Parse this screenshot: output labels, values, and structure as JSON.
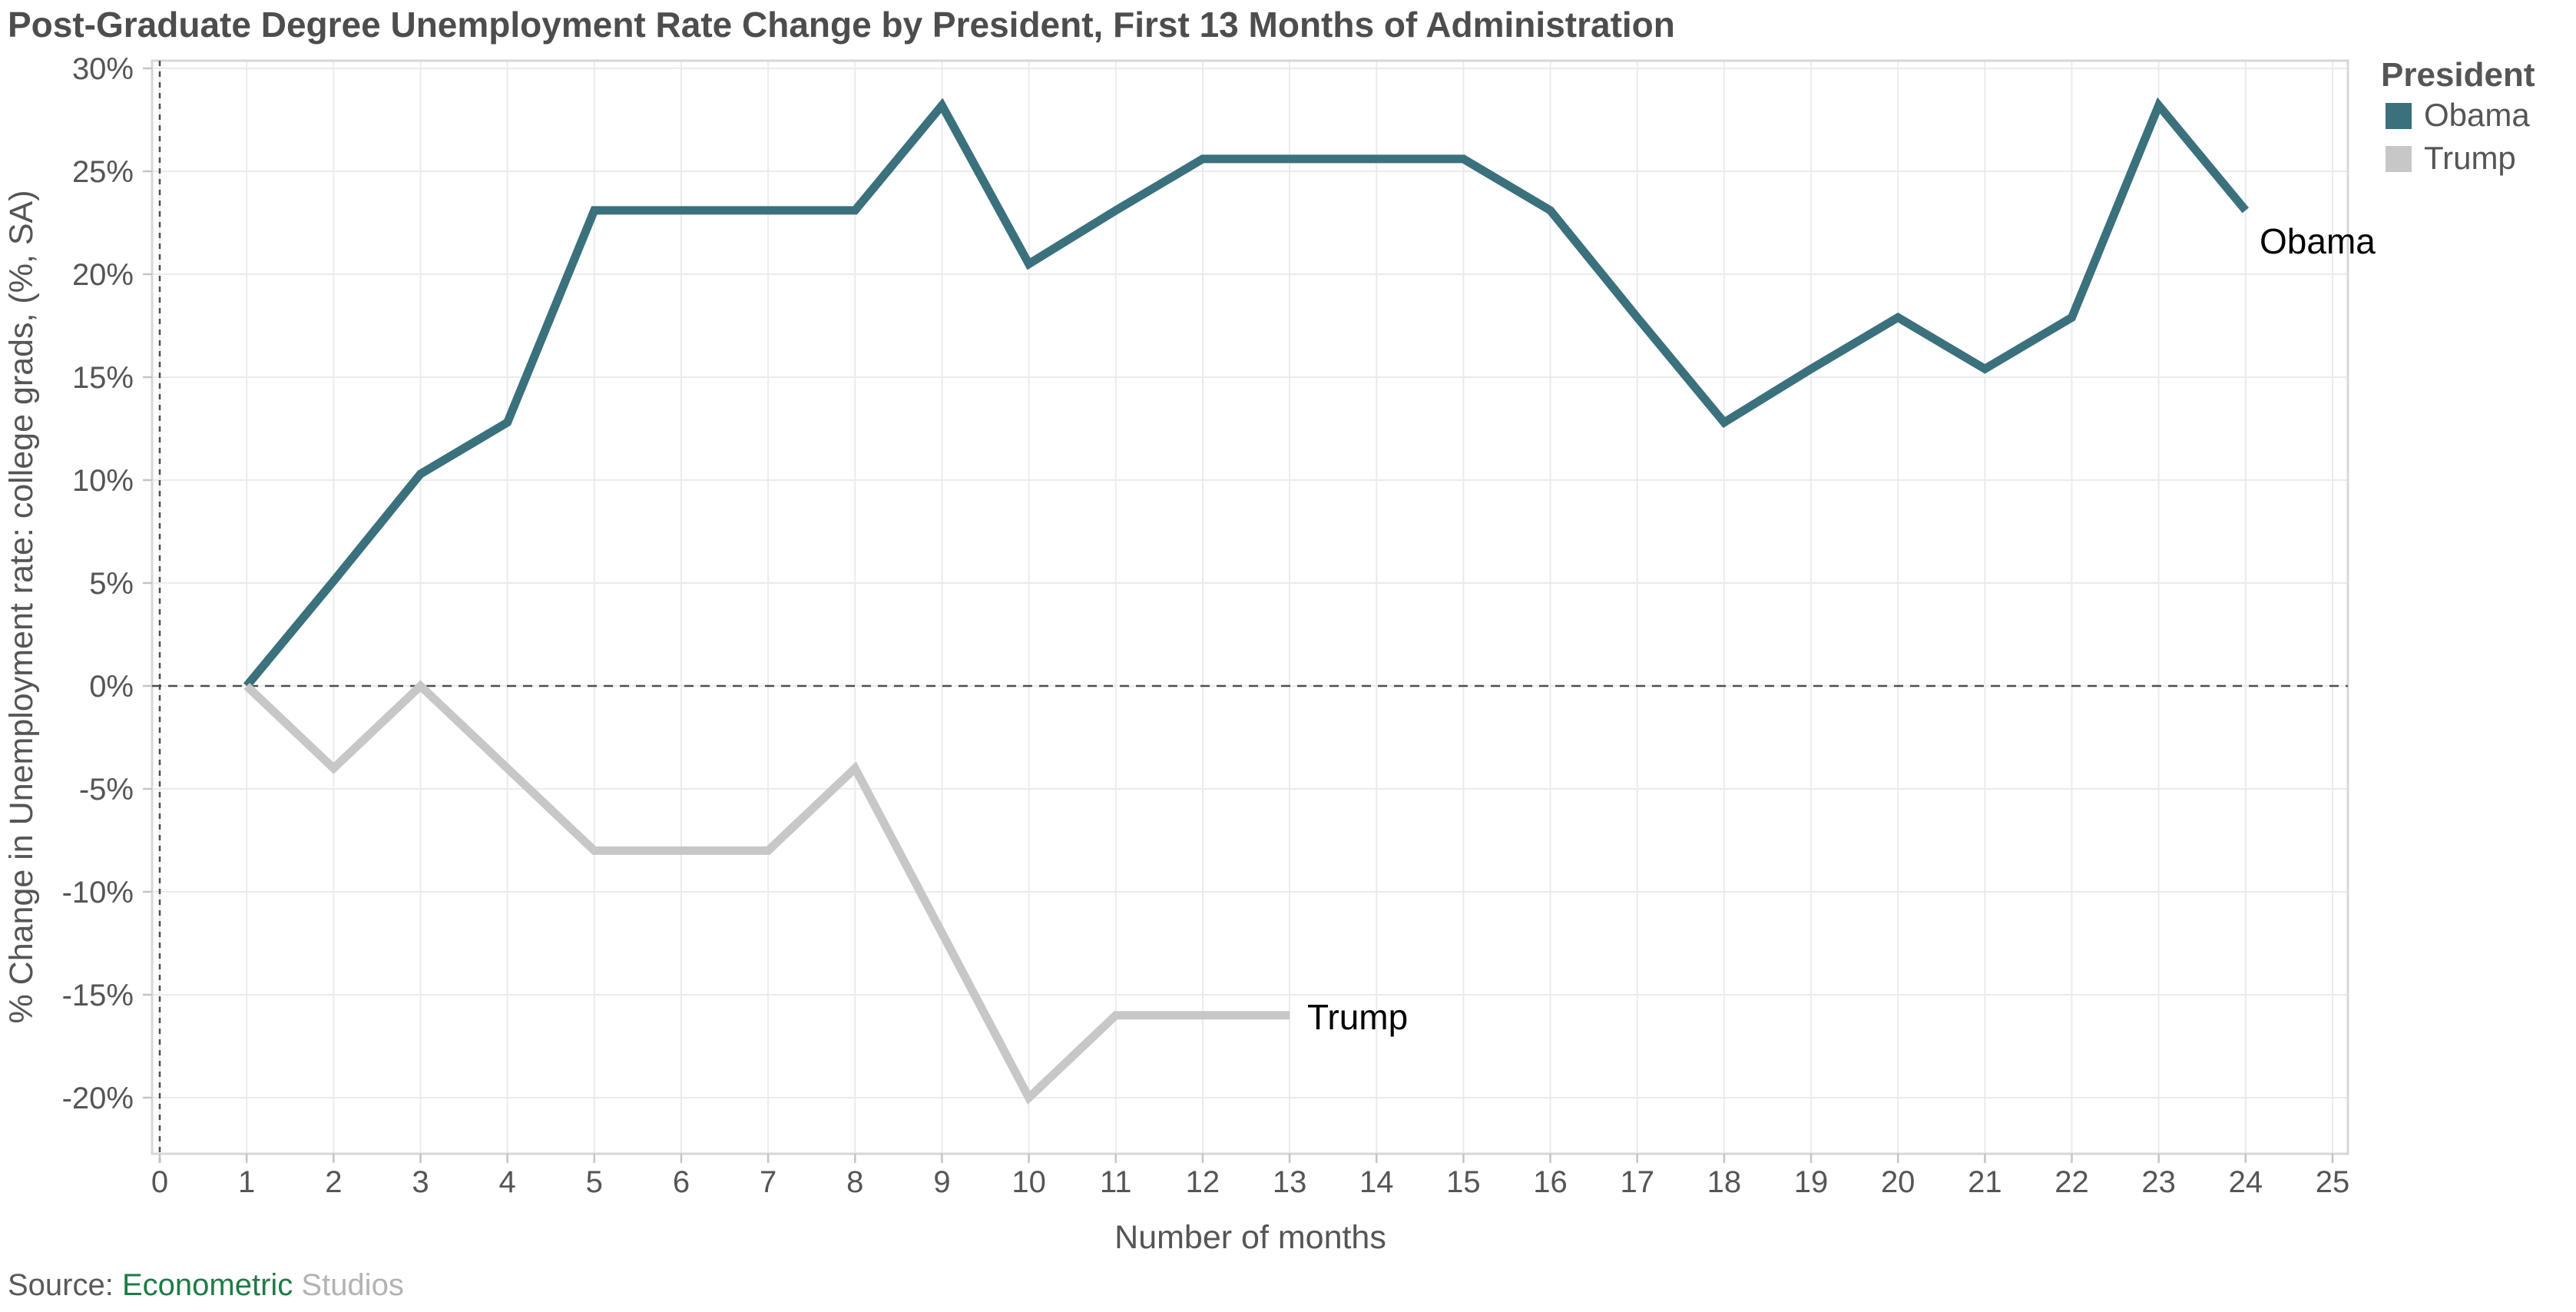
{
  "title": "Post-Graduate Degree Unemployment Rate Change by President, First 13 Months of Administration",
  "axes": {
    "x_title": "Number of months",
    "y_title": "% Change in Unemployment rate: college grads, (%, SA)",
    "x_ticks": [
      "0",
      "1",
      "2",
      "3",
      "4",
      "5",
      "6",
      "7",
      "8",
      "9",
      "10",
      "11",
      "12",
      "13",
      "14",
      "15",
      "16",
      "17",
      "18",
      "19",
      "20",
      "21",
      "22",
      "23",
      "24",
      "25"
    ],
    "y_ticks": [
      "30%",
      "25%",
      "20%",
      "15%",
      "10%",
      "5%",
      "0%",
      "-5%",
      "-10%",
      "-15%",
      "-20%"
    ]
  },
  "legend": {
    "title": "President",
    "items": [
      {
        "label": "Obama",
        "color": "#3A717C"
      },
      {
        "label": "Trump",
        "color": "#C7C7C7"
      }
    ]
  },
  "series_end_labels": {
    "obama": "Obama",
    "trump": "Trump"
  },
  "source": {
    "prefix": "Source: ",
    "brand": "Econometric",
    "suffix": " Studios"
  },
  "colors": {
    "obama_line": "#3A717C",
    "trump_line": "#C7C7C7",
    "grid": "#ebebeb",
    "frame": "#d7d7d7",
    "tick_mark": "#c4c4c4",
    "reference_dash": "#4d4d4d",
    "title_text": "#4d4d4d",
    "axis_text": "#555555",
    "source_brand_green": "#1E7B45",
    "source_gray": "#b3b3b3"
  },
  "chart_data": {
    "type": "line",
    "title": "Post-Graduate Degree Unemployment Rate Change by President, First 13 Months of Administration",
    "xlabel": "Number of months",
    "ylabel": "% Change in Unemployment rate: college grads, (%, SA)",
    "xlim": [
      0,
      25
    ],
    "ylim": [
      -22.5,
      30.5
    ],
    "x_tick_step": 1,
    "y_tick_step_percent": 5,
    "grid": true,
    "legend_position": "top-right",
    "zero_reference_line": "dashed",
    "month_zero_reference_line": "dashed",
    "series": [
      {
        "name": "Obama",
        "color": "#3A717C",
        "x": [
          1,
          2,
          3,
          4,
          5,
          6,
          7,
          8,
          9,
          10,
          11,
          12,
          13,
          14,
          15,
          16,
          17,
          18,
          19,
          20,
          21,
          22,
          23,
          24
        ],
        "values": [
          0,
          5.1,
          10.3,
          12.8,
          23.1,
          23.1,
          23.1,
          23.1,
          28.2,
          20.5,
          23.1,
          25.6,
          25.6,
          25.6,
          25.6,
          23.1,
          17.9,
          12.8,
          15.4,
          17.9,
          15.4,
          17.9,
          28.2,
          23.1
        ]
      },
      {
        "name": "Trump",
        "color": "#C7C7C7",
        "x": [
          1,
          2,
          3,
          4,
          5,
          6,
          7,
          8,
          9,
          10,
          11,
          12,
          13
        ],
        "values": [
          0,
          -4,
          0,
          -4,
          -8,
          -8,
          -8,
          -4,
          -12,
          -20,
          -16,
          -16,
          -16
        ]
      }
    ]
  }
}
